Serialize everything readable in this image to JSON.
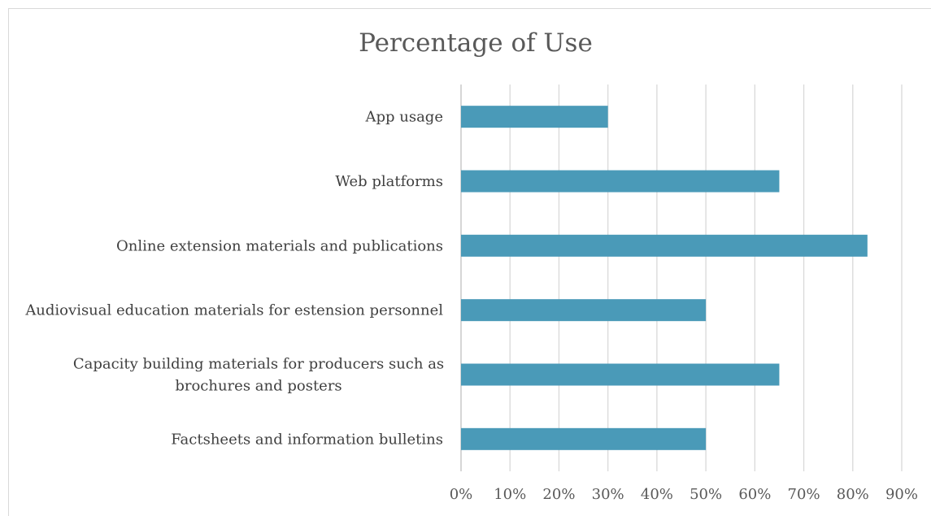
{
  "chart_data": {
    "type": "bar",
    "orientation": "horizontal",
    "title": "Percentage of Use",
    "categories": [
      "App usage",
      "Web platforms",
      "Online extension materials and publications",
      "Audiovisual education materials for estension personnel",
      "Capacity building materials for producers such as brochures and posters",
      "Factsheets and information bulletins"
    ],
    "category_lines": [
      [
        "App usage"
      ],
      [
        "Web platforms"
      ],
      [
        "Online extension materials and publications"
      ],
      [
        "Audiovisual education materials for estension personnel"
      ],
      [
        "Capacity building materials for producers such as",
        "brochures and posters"
      ],
      [
        "Factsheets and information bulletins"
      ]
    ],
    "values": [
      0.3,
      0.65,
      0.83,
      0.5,
      0.65,
      0.5
    ],
    "xlim": [
      0,
      0.9
    ],
    "ticks": [
      0,
      0.1,
      0.2,
      0.3,
      0.4,
      0.5,
      0.6,
      0.7,
      0.8,
      0.9
    ],
    "tick_labels": [
      "0%",
      "10%",
      "20%",
      "30%",
      "40%",
      "50%",
      "60%",
      "70%",
      "80%",
      "90%"
    ],
    "bar_color": "#4a9ab8",
    "grid": true,
    "legend": "none"
  }
}
